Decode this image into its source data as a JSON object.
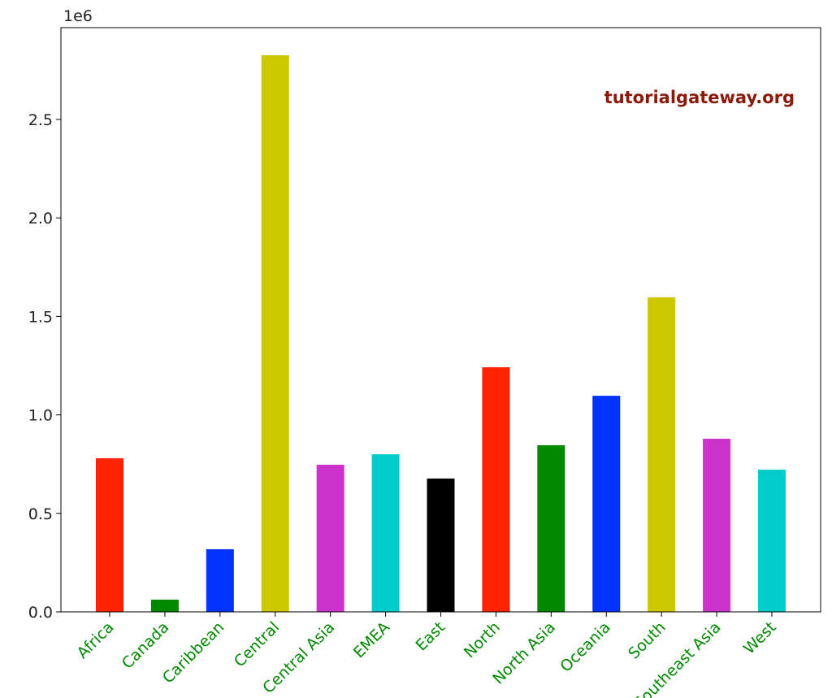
{
  "chart_data": {
    "type": "bar",
    "y_offset_label": "1e6",
    "annotation": "tutorialgateway.org",
    "categories": [
      "Africa",
      "Canada",
      "Caribbean",
      "Central",
      "Central Asia",
      "EMEA",
      "East",
      "North",
      "North Asia",
      "Oceania",
      "South",
      "Southeast Asia",
      "West"
    ],
    "values": [
      780000,
      62000,
      318000,
      2826000,
      747000,
      800000,
      677000,
      1242000,
      846000,
      1097000,
      1597000,
      879000,
      722000
    ],
    "colors": [
      "#ff2200",
      "#008800",
      "#0033ff",
      "#cbc800",
      "#cc33cc",
      "#00cccc",
      "#000000",
      "#ff2200",
      "#008800",
      "#0033ff",
      "#cbc800",
      "#cc33cc",
      "#00cccc"
    ],
    "tick_label_color": "#008800",
    "ylim": [
      0,
      2966000
    ],
    "yticks": [
      {
        "value": 0,
        "label": "0.0"
      },
      {
        "value": 500000,
        "label": "0.5"
      },
      {
        "value": 1000000,
        "label": "1.0"
      },
      {
        "value": 1500000,
        "label": "1.5"
      },
      {
        "value": 2000000,
        "label": "2.0"
      },
      {
        "value": 2500000,
        "label": "2.5"
      }
    ]
  }
}
